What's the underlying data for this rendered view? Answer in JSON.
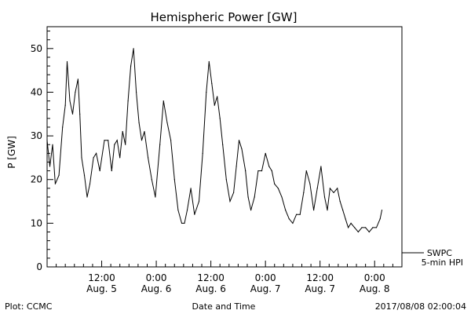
{
  "chart_data": {
    "type": "line",
    "title": "Hemispheric Power [GW]",
    "ylabel": "P [GW]",
    "xlabel": "Date and Time",
    "ylim": [
      0,
      55
    ],
    "xlim_hours": [
      0,
      78
    ],
    "yticks": [
      0,
      10,
      20,
      30,
      40,
      50
    ],
    "xticks": [
      {
        "x": 12,
        "time": "12:00",
        "date": "Aug. 5"
      },
      {
        "x": 24,
        "time": "0:00",
        "date": "Aug. 6"
      },
      {
        "x": 36,
        "time": "12:00",
        "date": "Aug. 6"
      },
      {
        "x": 48,
        "time": "0:00",
        "date": "Aug. 7"
      },
      {
        "x": 60,
        "time": "12:00",
        "date": "Aug. 7"
      },
      {
        "x": 72,
        "time": "0:00",
        "date": "Aug. 8"
      }
    ],
    "series": [
      {
        "name": "SWPC",
        "x": [
          0,
          0.6,
          1.2,
          1.8,
          2.6,
          3.4,
          4.0,
          4.4,
          5.0,
          5.6,
          6.2,
          6.8,
          7.2,
          7.6,
          8.2,
          8.8,
          9.4,
          10.2,
          10.8,
          11.6,
          12.6,
          13.4,
          14.2,
          14.8,
          15.4,
          16.0,
          16.6,
          17.2,
          17.8,
          18.4,
          19.0,
          19.6,
          20.2,
          20.8,
          21.4,
          22.2,
          23.0,
          23.8,
          24.8,
          25.6,
          26.4,
          27.2,
          28.0,
          28.8,
          29.6,
          30.2,
          30.8,
          31.6,
          32.4,
          33.4,
          34.2,
          35.0,
          35.6,
          36.2,
          36.8,
          37.4,
          38.0,
          38.6,
          39.4,
          40.2,
          41.0,
          41.6,
          42.2,
          42.8,
          43.6,
          44.2,
          44.8,
          45.6,
          46.4,
          47.2,
          48.0,
          48.8,
          49.4,
          50.0,
          50.8,
          51.6,
          52.4,
          53.2,
          54.0,
          54.8,
          55.6,
          56.4,
          57.0,
          57.8,
          58.6,
          59.4,
          60.2,
          61.0,
          61.6,
          62.2,
          63.0,
          63.8,
          64.4,
          65.0,
          65.6,
          66.2,
          66.8,
          67.6,
          68.4,
          69.2,
          70.0,
          70.8,
          71.6,
          72.4,
          73.2,
          73.6
        ],
        "values": [
          29,
          23,
          28,
          19,
          21,
          32,
          37,
          47,
          38,
          35,
          40,
          43,
          35,
          25,
          21,
          16,
          19,
          25,
          26,
          22,
          29,
          29,
          22,
          28,
          29,
          25,
          31,
          28,
          38,
          46,
          50,
          40,
          33,
          29,
          31,
          25,
          20,
          16,
          28,
          38,
          33,
          29,
          20,
          13,
          10,
          10,
          13,
          18,
          12,
          15,
          26,
          40,
          47,
          42,
          37,
          39,
          34,
          28,
          20,
          15,
          17,
          23,
          29,
          27,
          22,
          16,
          13,
          16,
          22,
          22,
          26,
          23,
          22,
          19,
          18,
          16,
          13,
          11,
          10,
          12,
          12,
          17,
          22,
          19,
          13,
          18,
          23,
          16,
          13,
          18,
          17,
          18,
          15,
          13,
          11,
          9,
          10,
          9,
          8,
          9,
          9,
          8,
          9,
          9,
          11,
          13
        ]
      }
    ]
  },
  "legend": {
    "swpc": "SWPC",
    "hpi": "5-min HPI"
  },
  "footer": {
    "left": "Plot: CCMC",
    "center": "Date and Time",
    "right": "2017/08/08 02:00:04"
  }
}
